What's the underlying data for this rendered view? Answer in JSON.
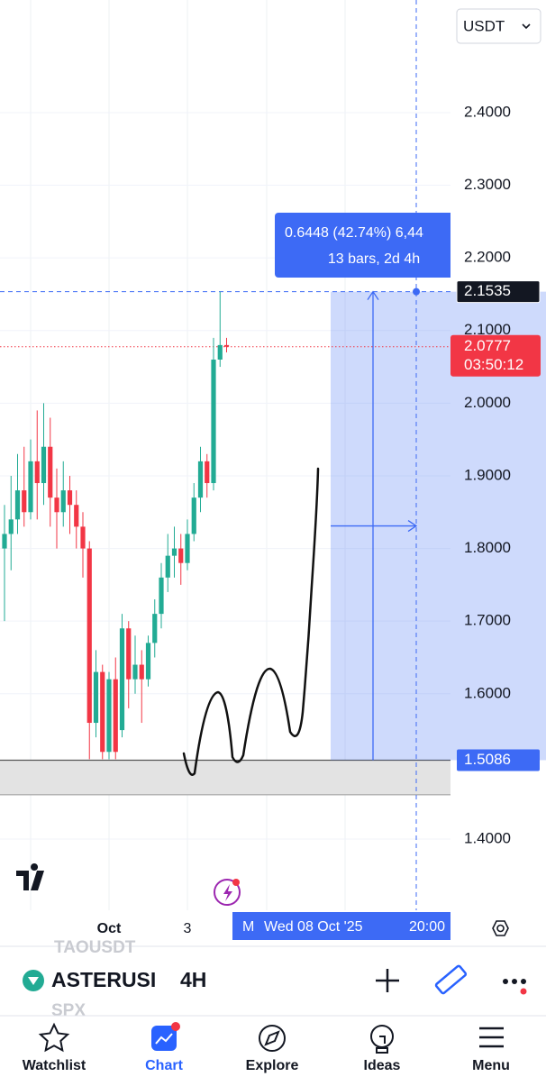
{
  "header": {
    "currency": "USDT"
  },
  "chart_data": {
    "type": "candlestick",
    "categories": [
      null,
      null,
      null,
      null,
      null,
      null,
      null,
      null,
      null,
      null,
      null,
      null,
      null,
      null,
      null,
      null,
      "Oct",
      null,
      null,
      null,
      null,
      null,
      null,
      null,
      null,
      null,
      null,
      null,
      "3",
      null,
      null,
      null,
      null,
      null,
      null
    ],
    "open": [
      1.8,
      1.82,
      1.84,
      1.88,
      1.85,
      1.92,
      1.89,
      1.94,
      1.87,
      1.85,
      1.88,
      1.86,
      1.83,
      1.8,
      1.56,
      1.63,
      1.52,
      1.62,
      1.55,
      1.69,
      1.62,
      1.64,
      1.62,
      1.67,
      1.71,
      1.76,
      1.79,
      1.8,
      1.78,
      1.82,
      1.87,
      1.92,
      1.89,
      2.06,
      2.08
    ],
    "high": [
      1.86,
      1.9,
      1.93,
      1.94,
      1.95,
      1.99,
      2.0,
      1.98,
      1.91,
      1.92,
      1.9,
      1.88,
      1.85,
      1.81,
      1.66,
      1.64,
      1.63,
      1.65,
      1.71,
      1.7,
      1.68,
      1.66,
      1.68,
      1.73,
      1.78,
      1.82,
      1.83,
      1.82,
      1.84,
      1.89,
      1.94,
      1.93,
      2.09,
      2.1535,
      2.09
    ],
    "low": [
      1.7,
      1.77,
      1.82,
      1.83,
      1.84,
      1.84,
      1.86,
      1.83,
      1.8,
      1.83,
      1.82,
      1.8,
      1.76,
      1.51,
      1.54,
      1.51,
      1.51,
      1.51,
      1.54,
      1.58,
      1.6,
      1.56,
      1.61,
      1.65,
      1.69,
      1.74,
      1.76,
      1.75,
      1.77,
      1.81,
      1.85,
      1.87,
      1.88,
      2.05,
      2.07
    ],
    "close": [
      1.82,
      1.84,
      1.88,
      1.85,
      1.92,
      1.89,
      1.94,
      1.87,
      1.85,
      1.88,
      1.86,
      1.83,
      1.8,
      1.56,
      1.63,
      1.52,
      1.62,
      1.52,
      1.69,
      1.62,
      1.64,
      1.62,
      1.67,
      1.71,
      1.76,
      1.79,
      1.8,
      1.78,
      1.82,
      1.87,
      1.92,
      1.89,
      2.06,
      2.08,
      2.0777
    ],
    "up_color": "#22ab94",
    "down_color": "#f23645",
    "ylim": [
      1.302,
      2.555
    ],
    "yticks": [
      {
        "value": 2.4,
        "label": "2.4000"
      },
      {
        "value": 2.3,
        "label": "2.3000"
      },
      {
        "value": 2.2,
        "label": "2.2000"
      },
      {
        "value": 2.1,
        "label": "2.1000"
      },
      {
        "value": 2.0,
        "label": "2.0000"
      },
      {
        "value": 1.9,
        "label": "1.9000"
      },
      {
        "value": 1.8,
        "label": "1.8000"
      },
      {
        "value": 1.7,
        "label": "1.7000"
      },
      {
        "value": 1.6,
        "label": "1.6000"
      },
      {
        "value": 1.5,
        "label": "1.5000"
      },
      {
        "value": 1.4,
        "label": "1.4000"
      }
    ],
    "grid": true,
    "last_price": {
      "value": 2.0777,
      "label": "2.0777",
      "countdown": "03:50:12",
      "color": "#f23645"
    },
    "support_zone": {
      "low": 1.461,
      "high": 1.5086
    },
    "measure": {
      "from": {
        "value": 1.5086,
        "label": "1.5086"
      },
      "to": {
        "value": 2.1535,
        "label": "2.1535"
      },
      "label": "0.6448 (42.74%) 6,44",
      "sublabel": "13 bars, 2d 4h",
      "color": "#3d6af5"
    },
    "crosshair": {
      "prefix": "M",
      "date": "Wed 08 Oct '25",
      "time": "20:00"
    }
  },
  "symbol_bar": {
    "ghost_top": "TAOUSDT",
    "symbol": "ASTERUSI",
    "interval": "4H",
    "ghost_bottom": "SPX"
  },
  "nav": [
    "Watchlist",
    "Chart",
    "Explore",
    "Ideas",
    "Menu"
  ]
}
